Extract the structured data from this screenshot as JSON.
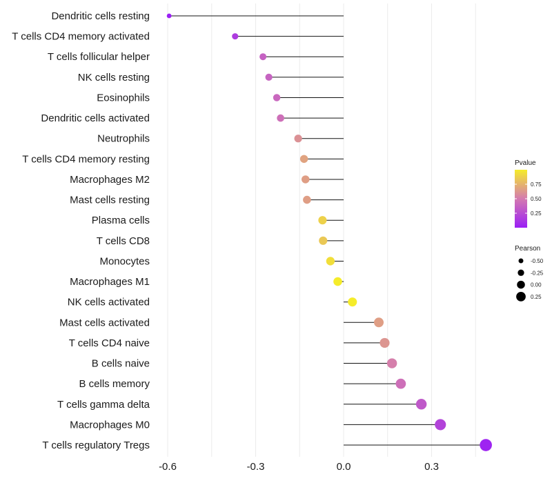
{
  "chart_data": {
    "type": "lollipop",
    "title": "",
    "xlabel": "",
    "ylabel": "",
    "xlim": [
      -0.62,
      0.5
    ],
    "x_ticks": [
      -0.6,
      -0.3,
      0.0,
      0.3
    ],
    "x_tick_labels": [
      "-0.6",
      "-0.3",
      "0.0",
      "0.3"
    ],
    "grid": true,
    "legend_position": "right",
    "categories": [
      {
        "name": "Dendritic cells resting",
        "pearson": -0.595,
        "pvalue": 0.0
      },
      {
        "name": "T cells CD4 memory activated",
        "pearson": -0.37,
        "pvalue": 0.16
      },
      {
        "name": "T cells follicular helper",
        "pearson": -0.275,
        "pvalue": 0.37
      },
      {
        "name": "NK cells resting",
        "pearson": -0.255,
        "pvalue": 0.38
      },
      {
        "name": "Eosinophils",
        "pearson": -0.228,
        "pvalue": 0.4
      },
      {
        "name": "Dendritic cells activated",
        "pearson": -0.215,
        "pvalue": 0.44
      },
      {
        "name": "Neutrophils",
        "pearson": -0.155,
        "pvalue": 0.6
      },
      {
        "name": "T cells CD4 memory resting",
        "pearson": -0.135,
        "pvalue": 0.68
      },
      {
        "name": "Macrophages M2",
        "pearson": -0.13,
        "pvalue": 0.66
      },
      {
        "name": "Mast cells resting",
        "pearson": -0.125,
        "pvalue": 0.66
      },
      {
        "name": "Plasma cells",
        "pearson": -0.072,
        "pvalue": 0.88
      },
      {
        "name": "T cells CD8",
        "pearson": -0.07,
        "pvalue": 0.84
      },
      {
        "name": "Monocytes",
        "pearson": -0.045,
        "pvalue": 0.94
      },
      {
        "name": "Macrophages M1",
        "pearson": -0.02,
        "pvalue": 1.0
      },
      {
        "name": "NK cells activated",
        "pearson": 0.03,
        "pvalue": 1.0
      },
      {
        "name": "Mast cells activated",
        "pearson": 0.12,
        "pvalue": 0.66
      },
      {
        "name": "T cells CD4 naive",
        "pearson": 0.14,
        "pvalue": 0.62
      },
      {
        "name": "B cells naive",
        "pearson": 0.165,
        "pvalue": 0.52
      },
      {
        "name": "B cells memory",
        "pearson": 0.195,
        "pvalue": 0.44
      },
      {
        "name": "T cells gamma delta",
        "pearson": 0.265,
        "pvalue": 0.32
      },
      {
        "name": "Macrophages M0",
        "pearson": 0.33,
        "pvalue": 0.2
      },
      {
        "name": "T cells regulatory  Tregs",
        "pearson": 0.485,
        "pvalue": 0.03
      }
    ],
    "legend_pvalue": {
      "title": "Pvalue",
      "ticks": [
        0.75,
        0.5,
        0.25
      ],
      "tick_labels": [
        "0.75",
        "0.50",
        "0.25"
      ],
      "range": [
        0.0,
        1.0
      ],
      "color_low": "#9b1ff5",
      "color_mid": "#d47ab0",
      "color_high": "#f5ec2a"
    },
    "legend_pearson": {
      "title": "Pearson",
      "values": [
        -0.5,
        -0.25,
        0.0,
        0.25
      ],
      "labels": [
        "-0.50",
        "-0.25",
        "0.00",
        "0.25"
      ]
    }
  }
}
